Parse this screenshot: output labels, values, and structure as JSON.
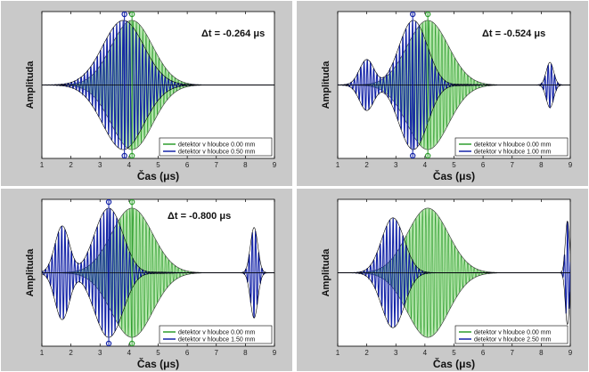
{
  "colors": {
    "green_fill": "#b9e8b0",
    "green_line": "#2e9e2e",
    "blue_line": "#1424a8",
    "black_line": "#000000",
    "panel_bg": "#c9c9c9",
    "plot_bg": "#ffffff"
  },
  "chart_data": [
    {
      "type": "line",
      "title": "",
      "annotation": "Δt = -0.264 μs",
      "xlabel": "Čas (μs)",
      "ylabel": "Amplituda",
      "xlim": [
        1,
        9
      ],
      "xticks": [
        "1",
        "2",
        "3",
        "4",
        "5",
        "6",
        "7",
        "8",
        "9"
      ],
      "series": [
        {
          "name": "detektor v hloubce 0.00 mm",
          "center": 4.1,
          "width": 1.0,
          "amplitude": 1.0
        },
        {
          "name": "detektor v hloubce 0.50 mm",
          "center": 3.8,
          "width": 1.0,
          "amplitude": 1.0
        }
      ],
      "markers_x": [
        3.84,
        4.1
      ]
    },
    {
      "type": "line",
      "title": "",
      "annotation": "Δt = -0.524 μs",
      "xlabel": "Čas (μs)",
      "ylabel": "Amplituda",
      "xlim": [
        1,
        9
      ],
      "xticks": [
        "1",
        "2",
        "3",
        "4",
        "5",
        "6",
        "7",
        "8",
        "9"
      ],
      "series": [
        {
          "name": "detektor v hloubce 0.00 mm",
          "center": 4.1,
          "width": 1.0,
          "amplitude": 1.0
        },
        {
          "name": "detektor v hloubce 1.00 mm",
          "center": 3.6,
          "width": 1.0,
          "amplitude": 1.0
        }
      ],
      "markers_x": [
        3.58,
        4.1
      ]
    },
    {
      "type": "line",
      "title": "",
      "annotation": "Δt = -0.800 μs",
      "xlabel": "Čas (μs)",
      "ylabel": "Amplituda",
      "xlim": [
        1,
        9
      ],
      "xticks": [
        "1",
        "2",
        "3",
        "4",
        "5",
        "6",
        "7",
        "8",
        "9"
      ],
      "series": [
        {
          "name": "detektor v hloubce 0.00 mm",
          "center": 4.1,
          "width": 1.0,
          "amplitude": 1.0
        },
        {
          "name": "detektor v hloubce 1.50 mm",
          "center": 3.3,
          "width": 1.0,
          "amplitude": 1.0
        }
      ],
      "markers_x": [
        3.3,
        4.1
      ]
    },
    {
      "type": "line",
      "title": "",
      "annotation": "",
      "xlabel": "Čas (μs)",
      "ylabel": "Amplituda",
      "xlim": [
        1,
        9
      ],
      "xticks": [
        "1",
        "2",
        "3",
        "4",
        "5",
        "6",
        "7",
        "8",
        "9"
      ],
      "series": [
        {
          "name": "detektor v hloubce 0.00 mm",
          "center": 4.1,
          "width": 1.0,
          "amplitude": 1.0
        },
        {
          "name": "detektor v hloubce 2.50 mm",
          "center": 2.9,
          "width": 1.0,
          "amplitude": 1.0
        }
      ],
      "markers_x": []
    }
  ]
}
